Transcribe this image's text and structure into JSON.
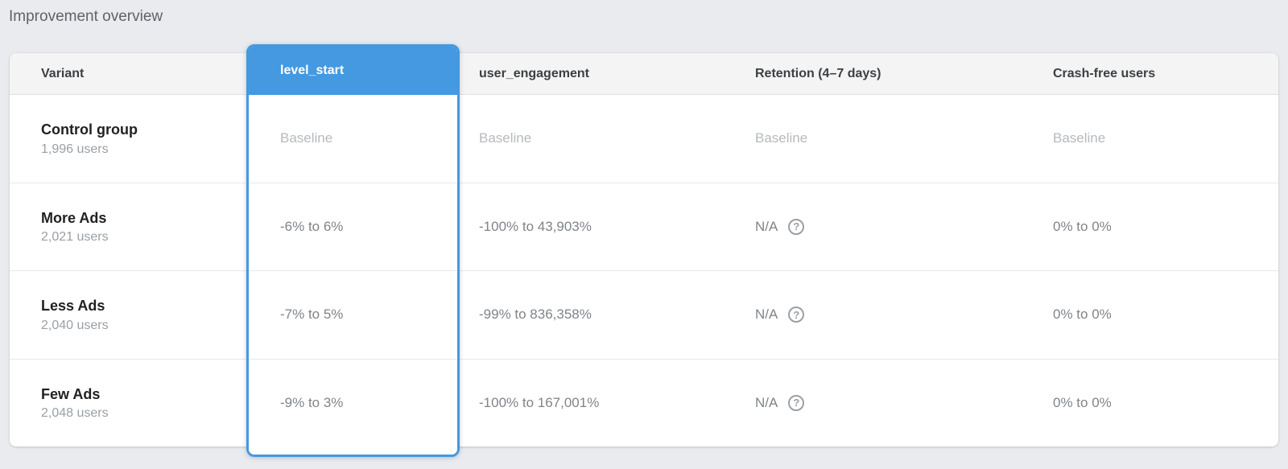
{
  "page": {
    "title": "Improvement overview"
  },
  "colors": {
    "accent_blue": "#4499e1",
    "page_bg": "#e9ebee",
    "header_bg": "#f4f4f4",
    "baseline_text": "#b6babd",
    "value_text": "#7f8489"
  },
  "table": {
    "columns": {
      "variant": "Variant",
      "level_start": "level_start",
      "user_engagement": "user_engagement",
      "retention": "Retention (4–7 days)",
      "crash_free": "Crash-free users"
    },
    "selected_column": "level_start",
    "help_icon": "?",
    "rows": [
      {
        "variant": "Control group",
        "users": "1,996 users",
        "level_start": "Baseline",
        "user_engagement": "Baseline",
        "retention": "Baseline",
        "crash_free": "Baseline"
      },
      {
        "variant": "More Ads",
        "users": "2,021 users",
        "level_start": "-6% to 6%",
        "user_engagement": "-100% to 43,903%",
        "retention": "N/A",
        "crash_free": "0% to 0%"
      },
      {
        "variant": "Less Ads",
        "users": "2,040 users",
        "level_start": "-7% to 5%",
        "user_engagement": "-99% to 836,358%",
        "retention": "N/A",
        "crash_free": "0% to 0%"
      },
      {
        "variant": "Few Ads",
        "users": "2,048 users",
        "level_start": "-9% to 3%",
        "user_engagement": "-100% to 167,001%",
        "retention": "N/A",
        "crash_free": "0% to 0%"
      }
    ]
  }
}
